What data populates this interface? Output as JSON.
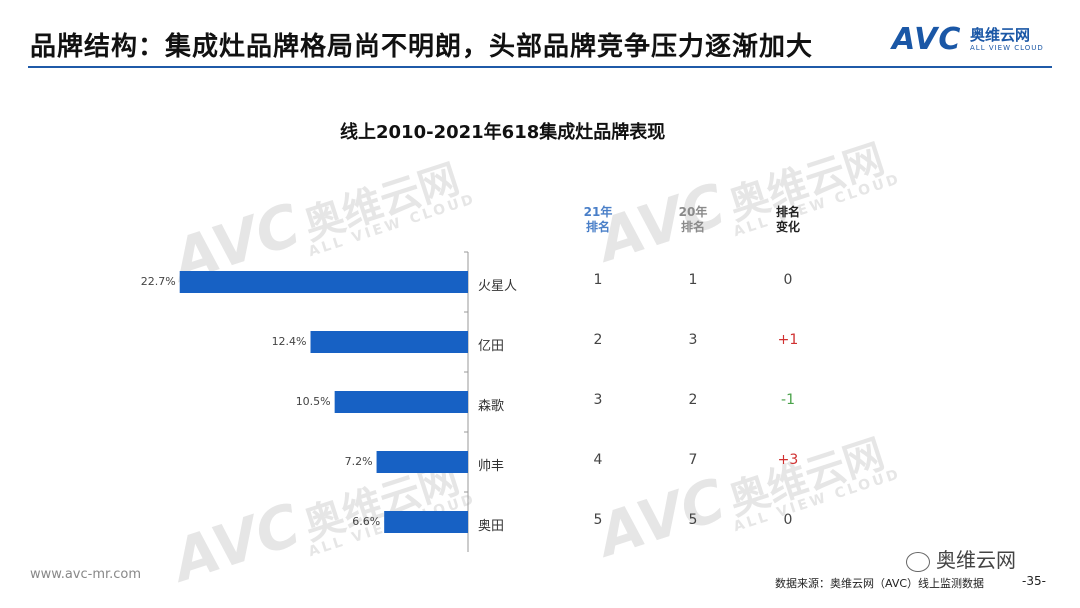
{
  "header": {
    "title": "品牌结构：集成灶品牌格局尚不明朗，头部品牌竞争压力逐渐加大"
  },
  "logo": {
    "mark": "AVC",
    "cn": "奥维云网",
    "en": "ALL VIEW CLOUD"
  },
  "watermark": {
    "mark": "AVC",
    "cn": "奥维云网",
    "en": "ALL VIEW CLOUD"
  },
  "columns": {
    "rank21": [
      "21年",
      "排名"
    ],
    "rank20": [
      "20年",
      "排名"
    ],
    "change": [
      "排名",
      "变化"
    ]
  },
  "colors": {
    "bar": "#1761c4",
    "rank21_head": "#4a7fc8",
    "rank20_head": "#8a8a8a",
    "up": "#d03030",
    "down": "#4aa34a",
    "neutral": "#444444",
    "axis": "#999999"
  },
  "chart_data": {
    "type": "bar",
    "orientation": "horizontal",
    "title": "线上2010-2021年618集成灶品牌表现",
    "categories": [
      "火星人",
      "亿田",
      "森歌",
      "帅丰",
      "奥田"
    ],
    "values": [
      22.7,
      12.4,
      10.5,
      7.2,
      6.6
    ],
    "value_labels": [
      "22.7%",
      "12.4%",
      "10.5%",
      "7.2%",
      "6.6%"
    ],
    "xlim": [
      0,
      25
    ],
    "direction": "right-to-left",
    "rank_2021": [
      "1",
      "2",
      "3",
      "4",
      "5"
    ],
    "rank_2020": [
      "1",
      "3",
      "2",
      "7",
      "5"
    ],
    "rank_change": [
      "0",
      "+1",
      "-1",
      "+3",
      "0"
    ],
    "rank_change_tone": [
      "neutral",
      "up",
      "down",
      "up",
      "neutral"
    ]
  },
  "footer": {
    "url": "www.avc-mr.com",
    "source": "数据来源：奥维云网（AVC）线上监测数据",
    "page": "-35-",
    "wechat": "奥维云网"
  }
}
